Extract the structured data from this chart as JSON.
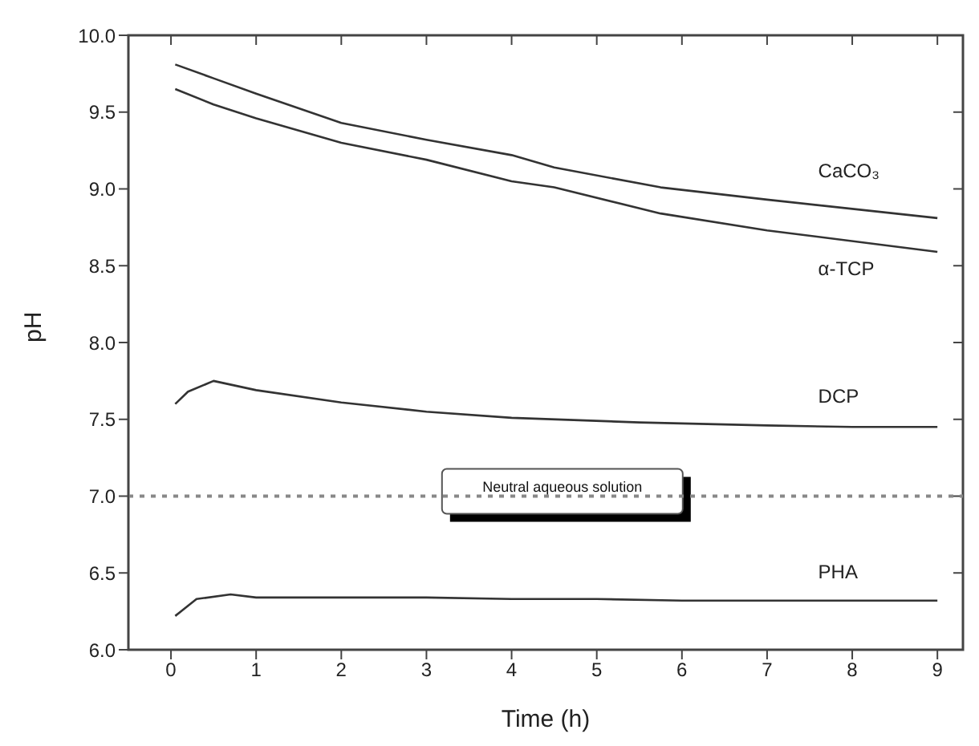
{
  "chart_data": {
    "type": "line",
    "xlabel": "Time (h)",
    "ylabel": "pH",
    "xlim": [
      -0.5,
      9.3
    ],
    "ylim": [
      6.0,
      10.0
    ],
    "xticks": [
      0,
      1,
      2,
      3,
      4,
      5,
      6,
      7,
      8,
      9
    ],
    "yticks": [
      {
        "value": 6.0,
        "label": "6.0"
      },
      {
        "value": 6.5,
        "label": "6.5"
      },
      {
        "value": 7.0,
        "label": "7.0"
      },
      {
        "value": 7.5,
        "label": "7.5"
      },
      {
        "value": 8.0,
        "label": "8.0"
      },
      {
        "value": 8.5,
        "label": "8.5"
      },
      {
        "value": 9.0,
        "label": "9.0"
      },
      {
        "value": 9.5,
        "label": "9.5"
      },
      {
        "value": 10.0,
        "label": "10.0"
      }
    ],
    "grid": false,
    "legend": false,
    "marker": "none",
    "line_style": "solid",
    "series": [
      {
        "name": "CaCO₃",
        "color": "#333333",
        "x": [
          0.05,
          0.5,
          1,
          2,
          3,
          4,
          4.5,
          5.75,
          7,
          9
        ],
        "values": [
          9.81,
          9.72,
          9.62,
          9.43,
          9.32,
          9.22,
          9.14,
          9.01,
          8.93,
          8.81
        ]
      },
      {
        "name": "α-TCP",
        "color": "#333333",
        "x": [
          0.05,
          0.5,
          1,
          2,
          3,
          4,
          4.5,
          5.75,
          7,
          9
        ],
        "values": [
          9.65,
          9.55,
          9.46,
          9.3,
          9.19,
          9.05,
          9.01,
          8.84,
          8.73,
          8.59
        ]
      },
      {
        "name": "DCP",
        "color": "#333333",
        "x": [
          0.05,
          0.2,
          0.5,
          1,
          2,
          3,
          4,
          5.5,
          7,
          8,
          9
        ],
        "values": [
          7.6,
          7.68,
          7.75,
          7.69,
          7.61,
          7.55,
          7.51,
          7.48,
          7.46,
          7.45,
          7.45
        ]
      },
      {
        "name": "PHA",
        "color": "#333333",
        "x": [
          0.05,
          0.3,
          0.7,
          1,
          2,
          3,
          4,
          5,
          6,
          7,
          8,
          9
        ],
        "values": [
          6.22,
          6.33,
          6.36,
          6.34,
          6.34,
          6.34,
          6.33,
          6.33,
          6.32,
          6.32,
          6.32,
          6.32
        ]
      }
    ],
    "ref_lines": [
      {
        "axis": "y",
        "value": 7.0,
        "label": "Neutral aqueous solution",
        "line_style": "dotted",
        "color": "#888888"
      }
    ]
  }
}
